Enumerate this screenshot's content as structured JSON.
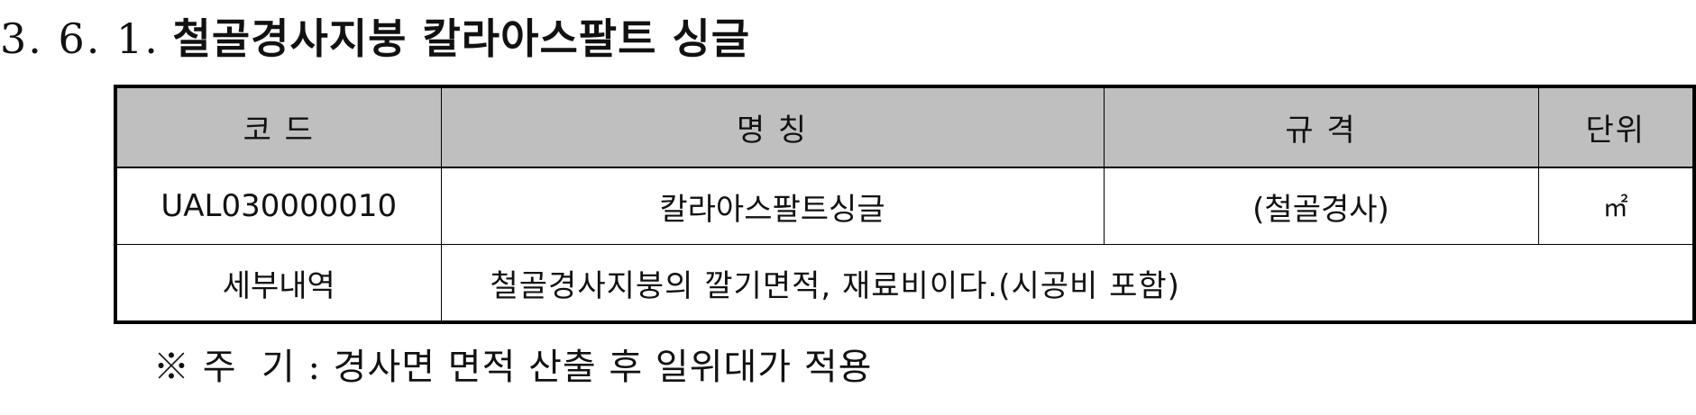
{
  "section": {
    "number": "3. 6. 1.",
    "title": "철골경사지붕 칼라아스팔트 싱글"
  },
  "table": {
    "headers": {
      "code": "코  드",
      "name": "명   칭",
      "spec": "규   격",
      "unit": "단위"
    },
    "row": {
      "code": "UAL030000010",
      "name": "칼라아스팔트싱글",
      "spec": "(철골경사)",
      "unit": "㎡"
    },
    "detail": {
      "label": "세부내역",
      "value": "철골경사지붕의 깔기면적, 재료비이다.(시공비 포함)"
    }
  },
  "note": "※ 주  기 : 경사면 면적 산출 후 일위대가 적용"
}
